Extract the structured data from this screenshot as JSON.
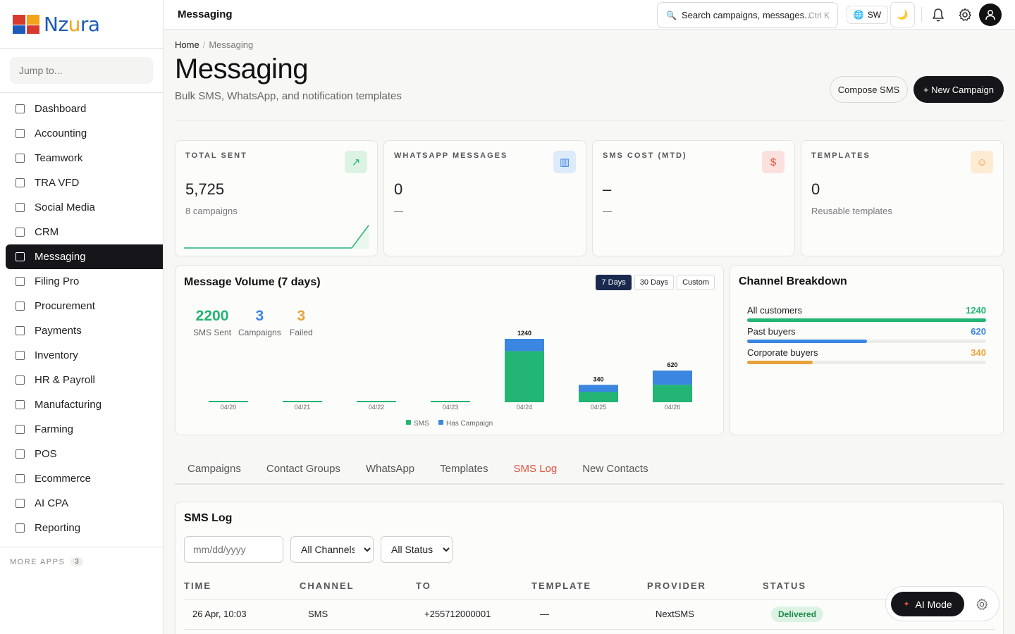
{
  "brand": {
    "name_prefix": "Nz",
    "name_accent": "u",
    "name_suffix": "ra"
  },
  "sidebar": {
    "jump_placeholder": "Jump to...",
    "items": [
      {
        "label": "Dashboard",
        "icon": "grid-icon"
      },
      {
        "label": "Accounting",
        "icon": "ledger-icon"
      },
      {
        "label": "Teamwork",
        "icon": "people-icon"
      },
      {
        "label": "TRA VFD",
        "icon": "bank-icon"
      },
      {
        "label": "Social Media",
        "icon": "share-icon"
      },
      {
        "label": "CRM",
        "icon": "contact-icon"
      },
      {
        "label": "Messaging",
        "icon": "message-icon",
        "active": true
      },
      {
        "label": "Filing Pro",
        "icon": "folder-icon"
      },
      {
        "label": "Procurement",
        "icon": "cart-icon"
      },
      {
        "label": "Payments",
        "icon": "card-icon"
      },
      {
        "label": "Inventory",
        "icon": "box-icon"
      },
      {
        "label": "HR & Payroll",
        "icon": "user-plus-icon"
      },
      {
        "label": "Manufacturing",
        "icon": "factory-icon"
      },
      {
        "label": "Farming",
        "icon": "leaf-icon"
      },
      {
        "label": "POS",
        "icon": "receipt-icon"
      },
      {
        "label": "Ecommerce",
        "icon": "bag-icon"
      },
      {
        "label": "AI CPA",
        "icon": "robot-icon"
      },
      {
        "label": "Reporting",
        "icon": "bar-chart-icon"
      }
    ],
    "more_apps_label": "MORE APPS",
    "more_apps_count": "3"
  },
  "topbar": {
    "title": "Messaging",
    "search_placeholder": "Search campaigns, messages...",
    "search_shortcut": "Ctrl K",
    "lang": "SW"
  },
  "header": {
    "breadcrumb_home": "Home",
    "breadcrumb_current": "Messaging",
    "title": "Messaging",
    "subtitle": "Bulk SMS, WhatsApp, and notification templates",
    "compose_label": "Compose SMS",
    "new_campaign_label": "+ New Campaign"
  },
  "stats": [
    {
      "label": "TOTAL SENT",
      "value": "5,725",
      "sub": "8 campaigns",
      "icon": "trend-up-icon",
      "color": "#22b573",
      "bg": "#dcf3e4"
    },
    {
      "label": "WHATSAPP MESSAGES",
      "value": "0",
      "sub": "—",
      "icon": "bar-chart-icon",
      "color": "#3b86e0",
      "bg": "#ddebfa"
    },
    {
      "label": "SMS COST (MTD)",
      "value": "–",
      "sub": "—",
      "icon": "dollar-icon",
      "color": "#e0523f",
      "bg": "#fbe1de"
    },
    {
      "label": "TEMPLATES",
      "value": "0",
      "sub": "Reusable templates",
      "icon": "user-icon",
      "color": "#e8a23a",
      "bg": "#fdebd3"
    }
  ],
  "volume": {
    "title": "Message Volume (7 days)",
    "ranges": [
      "7 Days",
      "30 Days",
      "Custom"
    ],
    "active_range": 0,
    "kpis": [
      {
        "value": "2200",
        "label": "SMS Sent",
        "color": "#22b573"
      },
      {
        "value": "3",
        "label": "Campaigns",
        "color": "#3b86e0"
      },
      {
        "value": "3",
        "label": "Failed",
        "color": "#e8a23a"
      }
    ]
  },
  "chart_data": {
    "type": "bar",
    "stacked": true,
    "categories": [
      "04/20",
      "04/21",
      "04/22",
      "04/23",
      "04/24",
      "04/25",
      "04/26"
    ],
    "series": [
      {
        "name": "SMS",
        "color": "#22b573",
        "values": [
          0,
          0,
          0,
          0,
          1000,
          200,
          340
        ]
      },
      {
        "name": "Has Campaign",
        "color": "#3b86e0",
        "values": [
          0,
          0,
          0,
          0,
          240,
          140,
          280
        ]
      }
    ],
    "totals": [
      0,
      0,
      0,
      0,
      1240,
      340,
      620
    ],
    "data_labels": [
      "",
      "",
      "",
      "",
      "1240",
      "340",
      "620"
    ],
    "ylim": [
      0,
      1240
    ],
    "legend": "bottom"
  },
  "channels": {
    "title": "Channel Breakdown",
    "max": 1240,
    "rows": [
      {
        "label": "All customers",
        "value": "1240",
        "n": 1240,
        "color": "#22b573"
      },
      {
        "label": "Past buyers",
        "value": "620",
        "n": 620,
        "color": "#3b86e0"
      },
      {
        "label": "Corporate buyers",
        "value": "340",
        "n": 340,
        "color": "#e8a23a"
      }
    ]
  },
  "tabs": [
    "Campaigns",
    "Contact Groups",
    "WhatsApp",
    "Templates",
    "SMS Log",
    "New Contacts"
  ],
  "active_tab": 4,
  "log": {
    "title": "SMS Log",
    "date_placeholder": "mm/dd/yyyy",
    "channel_filter": "All Channels",
    "status_filter": "All Status",
    "columns": [
      "TIME",
      "CHANNEL",
      "TO",
      "TEMPLATE",
      "PROVIDER",
      "STATUS"
    ],
    "rows": [
      {
        "time": "26 Apr, 10:03",
        "channel": "SMS",
        "to": "+255712000001",
        "template": "—",
        "provider": "NextSMS",
        "status": "Delivered"
      }
    ]
  },
  "ai": {
    "label": "AI Mode"
  }
}
